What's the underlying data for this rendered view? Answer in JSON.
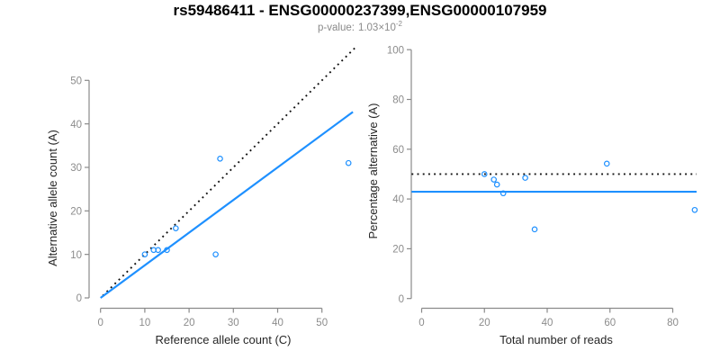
{
  "header": {
    "title": "rs59486411 - ENSG00000237399,ENSG00000107959",
    "pvalue": {
      "label": "p-value:",
      "mantissa": "1.03",
      "times": "×",
      "base": "10",
      "exponent": "-2"
    }
  },
  "colors": {
    "accent_blue": "#1E90FF",
    "dotted_line_black": "#111111",
    "axis_gray": "#8a8a8a",
    "tick_label_gray": "#8c8c8c",
    "axis_title_dark": "#262626",
    "title_black": "#000000",
    "subtitle_gray": "#8a8a8a"
  },
  "chart_data": [
    {
      "type": "scatter",
      "panel": "left",
      "title": "",
      "xlabel": "Reference allele count (C)",
      "ylabel": "Alternative allele count (A)",
      "xticks": [
        0,
        10,
        20,
        30,
        40,
        50
      ],
      "yticks": [
        0,
        10,
        20,
        30,
        40,
        50
      ],
      "xlim": [
        -2.3,
        58.8
      ],
      "ylim": [
        -2.3,
        58.8
      ],
      "grid": false,
      "legend": "none",
      "points": [
        [
          10,
          10
        ],
        [
          12,
          11
        ],
        [
          13,
          11
        ],
        [
          15,
          11
        ],
        [
          17,
          16
        ],
        [
          26,
          10
        ],
        [
          27,
          32
        ],
        [
          56,
          31
        ]
      ],
      "identity_line": {
        "style": "dotted",
        "x1": 0.5,
        "y1": 0.5,
        "x2": 57.5,
        "y2": 57.5
      },
      "fit_line": {
        "style": "solid",
        "slope": 0.75,
        "x1": 0,
        "y1": 0,
        "x2": 57,
        "y2": 42.75
      }
    },
    {
      "type": "scatter",
      "panel": "right",
      "title": "",
      "xlabel": "Total number of reads",
      "ylabel": "Percentage alternative (A)",
      "xticks": [
        0,
        20,
        40,
        60,
        80
      ],
      "yticks": [
        0,
        20,
        40,
        60,
        80,
        100
      ],
      "xlim": [
        -3.2,
        91.5
      ],
      "ylim": [
        -4,
        104
      ],
      "grid": false,
      "legend": "none",
      "points": [
        [
          20,
          50
        ],
        [
          23,
          47.8
        ],
        [
          24,
          45.8
        ],
        [
          26,
          42.3
        ],
        [
          33,
          48.5
        ],
        [
          36,
          27.8
        ],
        [
          59,
          54.2
        ],
        [
          87,
          35.6
        ]
      ],
      "identity_line": {
        "style": "dotted",
        "hline_y": 50,
        "x1": -3.2,
        "x2": 87.6
      },
      "fit_line": {
        "style": "solid",
        "hline_y": 42.9,
        "x1": -3.2,
        "x2": 87.6
      }
    }
  ]
}
